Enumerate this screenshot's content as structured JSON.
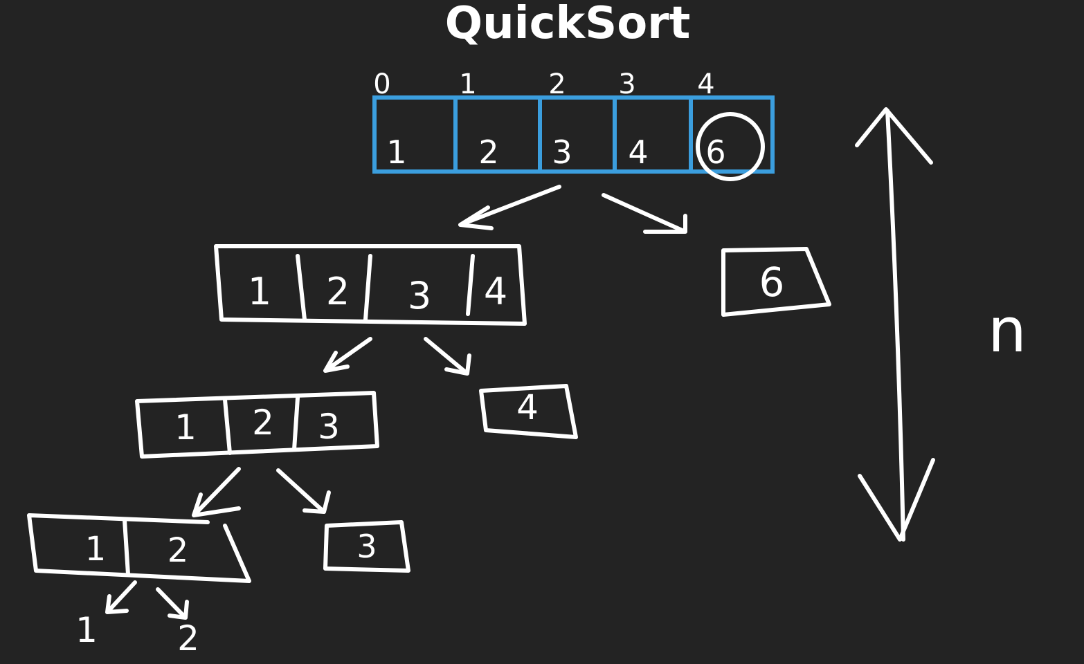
{
  "title": "QuickSort",
  "root": {
    "indices": [
      "0",
      "1",
      "2",
      "3",
      "4"
    ],
    "values": [
      "1",
      "2",
      "3",
      "4",
      "6"
    ]
  },
  "level1": {
    "left": [
      "1",
      "2",
      "3",
      "4"
    ],
    "right": [
      "6"
    ]
  },
  "level2": {
    "left": [
      "1",
      "2",
      "3"
    ],
    "right": [
      "4"
    ]
  },
  "level3": {
    "left": [
      "1",
      "2"
    ],
    "right": [
      "3"
    ]
  },
  "level4": {
    "left": "1",
    "right": "2"
  },
  "depth_label": "n",
  "colors": {
    "background": "#232323",
    "array_outline": "#3b9ede",
    "ink": "#ffffff"
  }
}
